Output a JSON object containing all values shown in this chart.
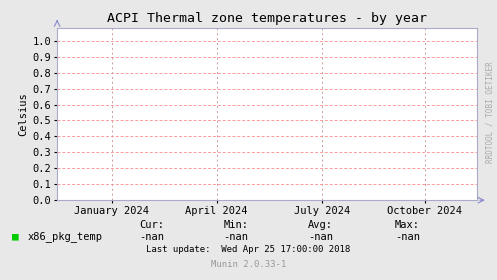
{
  "title": "ACPI Thermal zone temperatures - by year",
  "ylabel": "Celsius",
  "background_color": "#e8e8e8",
  "plot_bg_color": "#ffffff",
  "grid_color_h": "#ff9999",
  "grid_color_v": "#cc9999",
  "yticks": [
    0.0,
    0.1,
    0.2,
    0.3,
    0.4,
    0.5,
    0.6,
    0.7,
    0.8,
    0.9,
    1.0
  ],
  "ylim": [
    0.0,
    1.08
  ],
  "xtick_labels": [
    "January 2024",
    "April 2024",
    "July 2024",
    "October 2024"
  ],
  "xtick_positions": [
    0.13,
    0.38,
    0.63,
    0.875
  ],
  "legend_label": "x86_pkg_temp",
  "legend_color": "#00cc00",
  "cur_label": "Cur:",
  "cur_val": "-nan",
  "min_label": "Min:",
  "min_val": "-nan",
  "avg_label": "Avg:",
  "avg_val": "-nan",
  "max_label": "Max:",
  "max_val": "-nan",
  "last_update": "Last update:  Wed Apr 25 17:00:00 2018",
  "munin_version": "Munin 2.0.33-1",
  "watermark": "RRDTOOL / TOBI OETIKER",
  "font_family": "monospace",
  "title_fontsize": 9.5,
  "axis_fontsize": 7.5,
  "small_fontsize": 6.5,
  "watermark_fontsize": 5.5,
  "spine_color": "#aaaacc",
  "arrow_color": "#8888cc"
}
